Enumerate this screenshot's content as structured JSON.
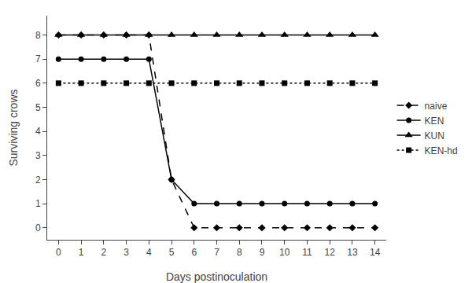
{
  "chart_data": {
    "type": "line",
    "xlabel": "Days postinoculation",
    "ylabel": "Surviving crows",
    "x": [
      0,
      1,
      2,
      3,
      4,
      5,
      6,
      7,
      8,
      9,
      10,
      11,
      12,
      13,
      14
    ],
    "series": [
      {
        "name": "naive",
        "color": "#000000",
        "marker": "diamond",
        "line_style": "dashed",
        "values": [
          8,
          8,
          8,
          8,
          8,
          2,
          0,
          0,
          0,
          0,
          0,
          0,
          0,
          0,
          0
        ]
      },
      {
        "name": "KEN",
        "color": "#000000",
        "marker": "circle",
        "line_style": "solid",
        "values": [
          7,
          7,
          7,
          7,
          7,
          2,
          1,
          1,
          1,
          1,
          1,
          1,
          1,
          1,
          1
        ]
      },
      {
        "name": "KUN",
        "color": "#000000",
        "marker": "triangle-up",
        "line_style": "solid",
        "values": [
          8,
          8,
          8,
          8,
          8,
          8,
          8,
          8,
          8,
          8,
          8,
          8,
          8,
          8,
          8
        ]
      },
      {
        "name": "KEN-hd",
        "color": "#000000",
        "marker": "square",
        "line_style": "dotted",
        "values": [
          6,
          6,
          6,
          6,
          6,
          6,
          6,
          6,
          6,
          6,
          6,
          6,
          6,
          6,
          6
        ]
      }
    ],
    "xlim": [
      -0.5,
      14.5
    ],
    "ylim": [
      -0.5,
      8.8
    ],
    "xticks": [
      0,
      1,
      2,
      3,
      4,
      5,
      6,
      7,
      8,
      9,
      10,
      11,
      12,
      13,
      14
    ],
    "yticks": [
      0,
      1,
      2,
      3,
      4,
      5,
      6,
      7,
      8
    ],
    "grid": false,
    "legend": "right"
  }
}
